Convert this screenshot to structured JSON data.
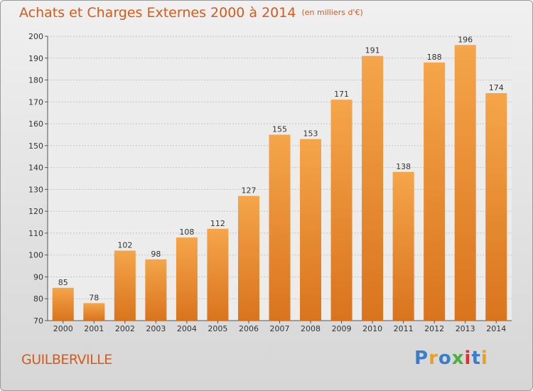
{
  "header": {
    "title": "Achats et Charges Externes 2000 à 2014",
    "unit": "(en milliers d'€)"
  },
  "commune": "GUILBERVILLE",
  "logo": {
    "letters": [
      "P",
      "r",
      "o",
      "x",
      "i",
      "t",
      "i"
    ],
    "colors": [
      "#3b7ec7",
      "#e8a21a",
      "#3b7ec7",
      "#4caf3e",
      "#d9342b",
      "#3b7ec7",
      "#e8a21a"
    ]
  },
  "colors": {
    "bar_light": "#f5a54a",
    "bar_dark": "#d9741d",
    "title": "#d45b1c"
  },
  "chart_data": {
    "type": "bar",
    "title": "Achats et Charges Externes 2000 à 2014",
    "categories": [
      "2000",
      "2001",
      "2002",
      "2003",
      "2004",
      "2005",
      "2006",
      "2007",
      "2008",
      "2009",
      "2010",
      "2011",
      "2012",
      "2013",
      "2014"
    ],
    "values": [
      85,
      78,
      102,
      98,
      108,
      112,
      127,
      155,
      153,
      171,
      191,
      138,
      188,
      196,
      174
    ],
    "ylim": [
      70,
      200
    ],
    "yticks": [
      70,
      80,
      90,
      100,
      110,
      120,
      130,
      140,
      150,
      160,
      170,
      180,
      190,
      200
    ],
    "grid": true
  }
}
